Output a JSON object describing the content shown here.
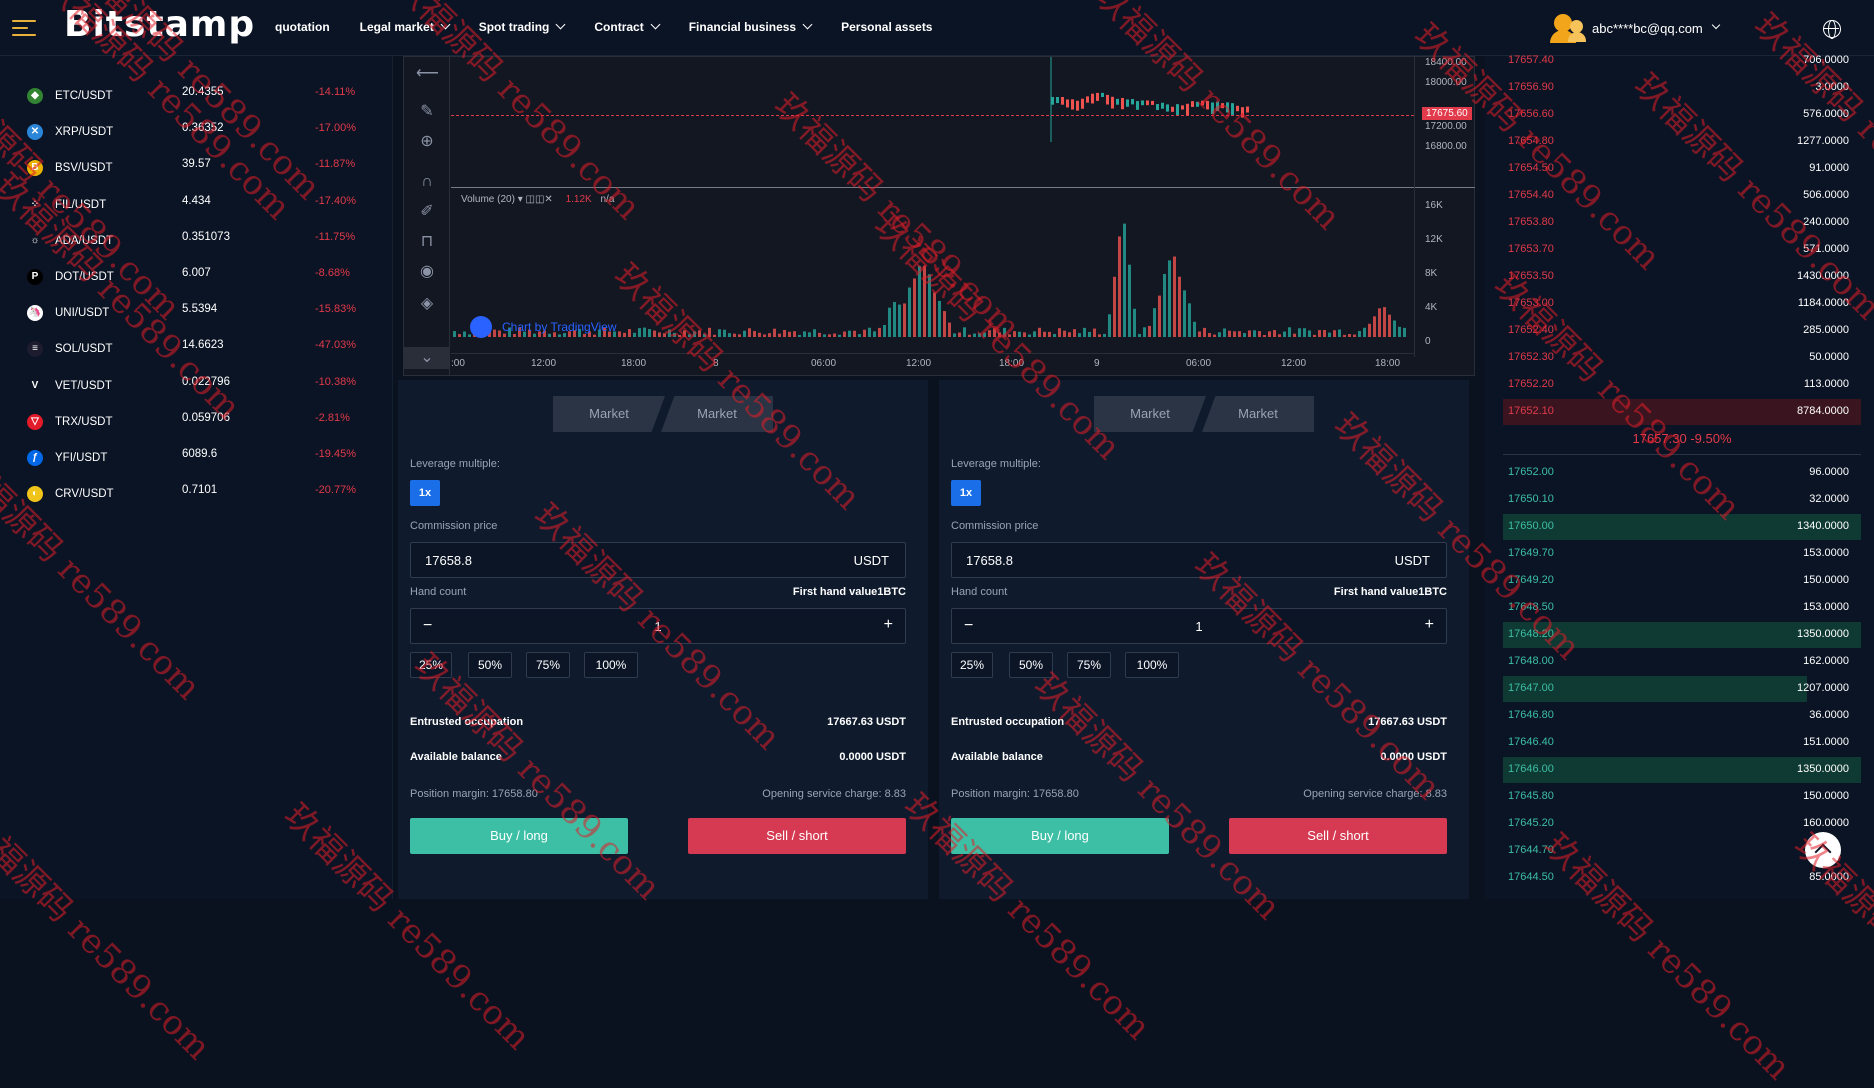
{
  "brand": "Bitstamp",
  "nav": [
    {
      "label": "quotation",
      "dropdown": false
    },
    {
      "label": "Legal market",
      "dropdown": true
    },
    {
      "label": "Spot trading",
      "dropdown": true
    },
    {
      "label": "Contract",
      "dropdown": true
    },
    {
      "label": "Financial business",
      "dropdown": true
    },
    {
      "label": "Personal assets",
      "dropdown": false
    }
  ],
  "user": {
    "email": "abc****bc@qq.com"
  },
  "colors": {
    "up": "#3cbfa4",
    "down": "#e13a4a",
    "accent": "#1a6fe8",
    "brand_icon": "#e8b23a"
  },
  "coins": [
    {
      "pair": "ETC/USDT",
      "price": "20.4355",
      "change": "-14.11%",
      "icon": "etc-icon",
      "color": "#328332",
      "glyph": "◆"
    },
    {
      "pair": "XRP/USDT",
      "price": "0.36352",
      "change": "-17.00%",
      "icon": "xrp-icon",
      "color": "#2b86d8",
      "glyph": "✕"
    },
    {
      "pair": "BSV/USDT",
      "price": "39.57",
      "change": "-11.87%",
      "icon": "bsv-icon",
      "color": "#eab300",
      "glyph": "B"
    },
    {
      "pair": "FIL/USDT",
      "price": "4.434",
      "change": "-17.40%",
      "icon": "fil-icon",
      "color": "#0b1424",
      "glyph": "⁘"
    },
    {
      "pair": "ADA/USDT",
      "price": "0.351073",
      "change": "-11.75%",
      "icon": "ada-icon",
      "color": "#0b1424",
      "glyph": "☼"
    },
    {
      "pair": "DOT/USDT",
      "price": "6.007",
      "change": "-8.68%",
      "icon": "dot-icon",
      "color": "#000000",
      "glyph": "P"
    },
    {
      "pair": "UNI/USDT",
      "price": "5.5394",
      "change": "-15.83%",
      "icon": "uni-icon",
      "color": "#ffffff",
      "glyph": "🦄"
    },
    {
      "pair": "SOL/USDT",
      "price": "14.6623",
      "change": "-47.03%",
      "icon": "sol-icon",
      "color": "#1c1c2e",
      "glyph": "≡"
    },
    {
      "pair": "VET/USDT",
      "price": "0.022796",
      "change": "-10.38%",
      "icon": "vet-icon",
      "color": "#0b1424",
      "glyph": "V"
    },
    {
      "pair": "TRX/USDT",
      "price": "0.059706",
      "change": "-2.81%",
      "icon": "trx-icon",
      "color": "#e21a29",
      "glyph": "▽"
    },
    {
      "pair": "YFI/USDT",
      "price": "6089.6",
      "change": "-19.45%",
      "icon": "yfi-icon",
      "color": "#0067e6",
      "glyph": "ƒ"
    },
    {
      "pair": "CRV/USDT",
      "price": "0.7101",
      "change": "-20.77%",
      "icon": "crv-icon",
      "color": "#f0c419",
      "glyph": "◐"
    }
  ],
  "chart": {
    "price_axis": [
      "18400.00",
      "18000.00",
      "17200.00",
      "16800.00"
    ],
    "last_price": "17675.60",
    "volume_axis": [
      "16K",
      "12K",
      "8K",
      "4K",
      "0"
    ],
    "volume_label": "Volume (20)",
    "volume_value": "1.12K",
    "volume_na": "n/a",
    "time_axis": [
      ":00",
      "12:00",
      "18:00",
      "8",
      "06:00",
      "12:00",
      "18:00",
      "9",
      "06:00",
      "12:00",
      "18:00"
    ],
    "attribution": "Chart by TradingView"
  },
  "panels": [
    {
      "tab1": "Market",
      "tab2": "Market",
      "leverage_label": "Leverage multiple:",
      "leverage": "1x",
      "commission_label": "Commission price",
      "commission": "17658.8",
      "commission_unit": "USDT",
      "hand_label": "Hand count",
      "hand_value_label": "First hand value1BTC",
      "hand_count": "1",
      "minus": "−",
      "plus": "+",
      "pcts": [
        "25%",
        "50%",
        "75%",
        "100%"
      ],
      "entrusted_label": "Entrusted occupation",
      "entrusted": "17667.63 USDT",
      "available_label": "Available balance",
      "available": "0.0000 USDT",
      "margin": "Position margin: 17658.80",
      "fee": "Opening service charge: 8.83",
      "buy": "Buy / long",
      "sell": "Sell / short"
    },
    {
      "tab1": "Market",
      "tab2": "Market",
      "leverage_label": "Leverage multiple:",
      "leverage": "1x",
      "commission_label": "Commission price",
      "commission": "17658.8",
      "commission_unit": "USDT",
      "hand_label": "Hand count",
      "hand_value_label": "First hand value1BTC",
      "hand_count": "1",
      "minus": "−",
      "plus": "+",
      "pcts": [
        "25%",
        "50%",
        "75%",
        "100%"
      ],
      "entrusted_label": "Entrusted occupation",
      "entrusted": "17667.63 USDT",
      "available_label": "Available balance",
      "available": "0.0000 USDT",
      "margin": "Position margin: 17658.80",
      "fee": "Opening service charge: 8.83",
      "buy": "Buy / long",
      "sell": "Sell / short"
    }
  ],
  "asks": [
    {
      "p": "17657.40",
      "a": "706.0000",
      "d": 0
    },
    {
      "p": "17656.90",
      "a": "3.0000",
      "d": 0
    },
    {
      "p": "17656.60",
      "a": "576.0000",
      "d": 0
    },
    {
      "p": "17654.80",
      "a": "1277.0000",
      "d": 0
    },
    {
      "p": "17654.50",
      "a": "91.0000",
      "d": 0
    },
    {
      "p": "17654.40",
      "a": "506.0000",
      "d": 0
    },
    {
      "p": "17653.80",
      "a": "240.0000",
      "d": 0
    },
    {
      "p": "17653.70",
      "a": "571.0000",
      "d": 0
    },
    {
      "p": "17653.50",
      "a": "1430.0000",
      "d": 0
    },
    {
      "p": "17653.00",
      "a": "1184.0000",
      "d": 0
    },
    {
      "p": "17652.40",
      "a": "285.0000",
      "d": 0
    },
    {
      "p": "17652.30",
      "a": "50.0000",
      "d": 0
    },
    {
      "p": "17652.20",
      "a": "113.0000",
      "d": 0
    },
    {
      "p": "17652.10",
      "a": "8784.0000",
      "d": 1
    }
  ],
  "mid_price": "17657.30 -9.50%",
  "bids": [
    {
      "p": "17652.00",
      "a": "96.0000",
      "d": 0
    },
    {
      "p": "17650.10",
      "a": "32.0000",
      "d": 0
    },
    {
      "p": "17650.00",
      "a": "1340.0000",
      "d": 1
    },
    {
      "p": "17649.70",
      "a": "153.0000",
      "d": 0
    },
    {
      "p": "17649.20",
      "a": "150.0000",
      "d": 0
    },
    {
      "p": "17648.50",
      "a": "153.0000",
      "d": 0
    },
    {
      "p": "17648.20",
      "a": "1350.0000",
      "d": 1
    },
    {
      "p": "17648.00",
      "a": "162.0000",
      "d": 0
    },
    {
      "p": "17647.00",
      "a": "1207.0000",
      "d": 0.85
    },
    {
      "p": "17646.80",
      "a": "36.0000",
      "d": 0
    },
    {
      "p": "17646.40",
      "a": "151.0000",
      "d": 0
    },
    {
      "p": "17646.00",
      "a": "1350.0000",
      "d": 1
    },
    {
      "p": "17645.80",
      "a": "150.0000",
      "d": 0
    },
    {
      "p": "17645.20",
      "a": "160.0000",
      "d": 0
    },
    {
      "p": "17644.70",
      "a": "",
      "d": 0
    },
    {
      "p": "17644.50",
      "a": "85.0000",
      "d": 0
    }
  ],
  "watermark": "玖福源码 re589.com"
}
